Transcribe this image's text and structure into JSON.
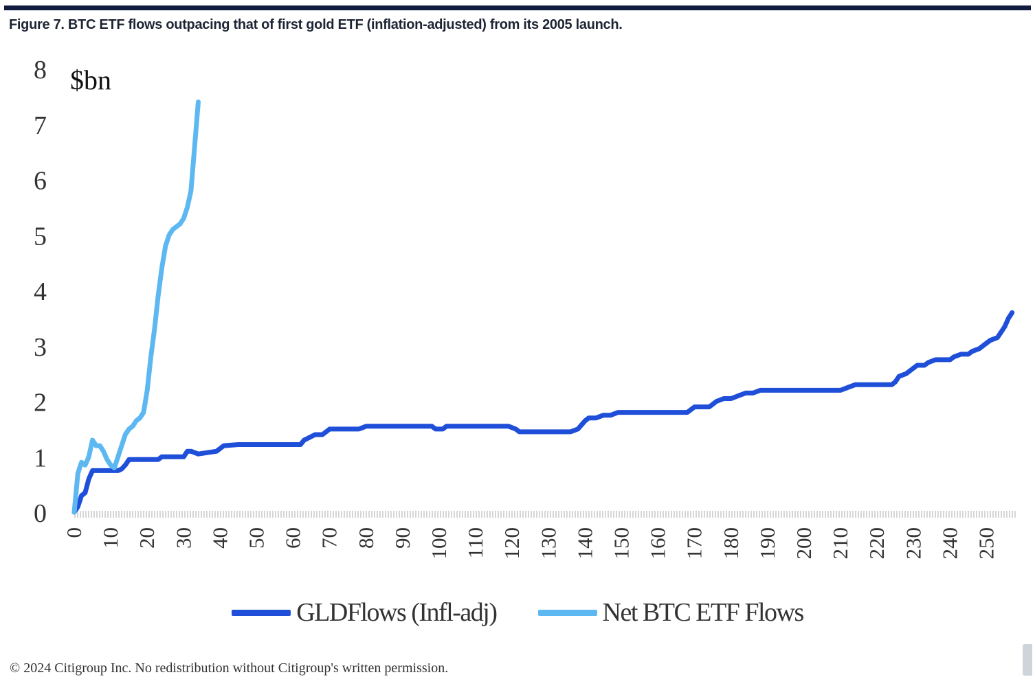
{
  "figure": {
    "title": "Figure 7. BTC ETF flows outpacing that of first gold ETF (inflation-adjusted) from its 2005 launch.",
    "copyright": "© 2024 Citigroup Inc. No redistribution without Citigroup's written permission."
  },
  "chart_data": {
    "type": "line",
    "title": "",
    "xlabel": "",
    "ylabel": "$bn",
    "xlim": [
      0,
      258
    ],
    "ylim": [
      0,
      8
    ],
    "x_ticks": [
      0,
      10,
      20,
      30,
      40,
      50,
      60,
      70,
      80,
      90,
      100,
      110,
      120,
      130,
      140,
      150,
      160,
      170,
      180,
      190,
      200,
      210,
      220,
      230,
      240,
      250
    ],
    "y_ticks": [
      0,
      1,
      2,
      3,
      4,
      5,
      6,
      7,
      8
    ],
    "grid": false,
    "legend_position": "bottom",
    "series": [
      {
        "name": "GLDFlows (Infl-adj)",
        "color": "#1f4fd8",
        "x": [
          0,
          1,
          2,
          3,
          4,
          5,
          6,
          10,
          12,
          13,
          14,
          15,
          20,
          23,
          24,
          30,
          31,
          32,
          34,
          39,
          40,
          41,
          45,
          50,
          58,
          62,
          63,
          66,
          68,
          70,
          77,
          78,
          80,
          98,
          99,
          101,
          102,
          104,
          119,
          121,
          122,
          126,
          128,
          136,
          138,
          140,
          141,
          143,
          145,
          147,
          149,
          152,
          168,
          169,
          170,
          174,
          176,
          178,
          180,
          182,
          184,
          186,
          188,
          190,
          210,
          212,
          214,
          216,
          224,
          225,
          226,
          228,
          230,
          231,
          233,
          234,
          236,
          238,
          240,
          241,
          243,
          245,
          246,
          248,
          250,
          251,
          253,
          254,
          255,
          256,
          257
        ],
        "y": [
          0.0,
          0.1,
          0.3,
          0.35,
          0.6,
          0.75,
          0.75,
          0.75,
          0.75,
          0.78,
          0.85,
          0.95,
          0.95,
          0.95,
          1.0,
          1.0,
          1.1,
          1.1,
          1.05,
          1.1,
          1.15,
          1.2,
          1.22,
          1.22,
          1.22,
          1.22,
          1.3,
          1.4,
          1.4,
          1.5,
          1.5,
          1.5,
          1.55,
          1.55,
          1.5,
          1.5,
          1.55,
          1.55,
          1.55,
          1.5,
          1.45,
          1.45,
          1.45,
          1.45,
          1.5,
          1.65,
          1.7,
          1.7,
          1.75,
          1.75,
          1.8,
          1.8,
          1.8,
          1.85,
          1.9,
          1.9,
          2.0,
          2.05,
          2.05,
          2.1,
          2.15,
          2.15,
          2.2,
          2.2,
          2.2,
          2.25,
          2.3,
          2.3,
          2.3,
          2.35,
          2.45,
          2.5,
          2.6,
          2.65,
          2.65,
          2.7,
          2.75,
          2.75,
          2.75,
          2.8,
          2.85,
          2.85,
          2.9,
          2.95,
          3.05,
          3.1,
          3.15,
          3.25,
          3.35,
          3.5,
          3.6
        ]
      },
      {
        "name": "Net BTC ETF Flows",
        "color": "#5db8f2",
        "x": [
          0,
          1,
          2,
          3,
          4,
          5,
          6,
          7,
          8,
          9,
          10,
          11,
          12,
          13,
          14,
          15,
          16,
          17,
          18,
          19,
          20,
          21,
          22,
          23,
          24,
          25,
          26,
          27,
          28,
          29,
          30,
          31,
          32,
          33,
          34
        ],
        "y": [
          0.0,
          0.7,
          0.9,
          0.85,
          1.0,
          1.3,
          1.2,
          1.2,
          1.1,
          0.95,
          0.85,
          0.8,
          1.0,
          1.2,
          1.4,
          1.5,
          1.55,
          1.65,
          1.7,
          1.8,
          2.2,
          2.8,
          3.3,
          3.9,
          4.4,
          4.8,
          5.0,
          5.1,
          5.15,
          5.2,
          5.3,
          5.5,
          5.8,
          6.6,
          7.4
        ]
      }
    ]
  }
}
